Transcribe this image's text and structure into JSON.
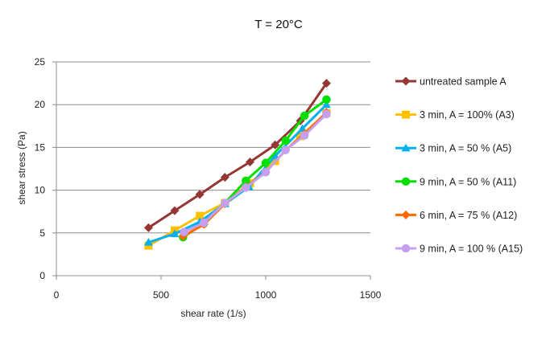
{
  "chart_data": {
    "type": "line",
    "title": "T = 20°C",
    "xlabel": "shear rate (1/s)",
    "ylabel": "shear stress (Pa)",
    "xlim": [
      0,
      1500
    ],
    "ylim": [
      0,
      25
    ],
    "xticks": [
      0,
      500,
      1000,
      1500
    ],
    "yticks": [
      0,
      5,
      10,
      15,
      20,
      25
    ],
    "grid": "horizontal",
    "legend": "right",
    "series": [
      {
        "name": "untreated sample A",
        "color": "#943634",
        "marker": "diamond",
        "points": [
          [
            440,
            5.6
          ],
          [
            565,
            7.6
          ],
          [
            685,
            9.5
          ],
          [
            805,
            11.5
          ],
          [
            925,
            13.3
          ],
          [
            1045,
            15.3
          ],
          [
            1165,
            18.1
          ],
          [
            1290,
            22.5
          ]
        ]
      },
      {
        "name": "3 min, A = 100% (A3)",
        "color": "#ffc000",
        "marker": "square",
        "points": [
          [
            440,
            3.5
          ],
          [
            565,
            5.3
          ],
          [
            685,
            7.0
          ],
          [
            805,
            8.5
          ],
          [
            925,
            10.8
          ],
          [
            1045,
            13.4
          ],
          [
            1165,
            16.3
          ],
          [
            1290,
            19.0
          ]
        ]
      },
      {
        "name": "3 min, A = 50 % (A5)",
        "color": "#00b0f0",
        "marker": "triangle",
        "points": [
          [
            440,
            3.9
          ],
          [
            565,
            4.9
          ],
          [
            685,
            6.3
          ],
          [
            805,
            8.4
          ],
          [
            920,
            10.4
          ],
          [
            1045,
            14.0
          ],
          [
            1175,
            17.2
          ],
          [
            1290,
            20.0
          ]
        ]
      },
      {
        "name": "9 min, A = 50 % (A11)",
        "color": "#00e000",
        "marker": "circle",
        "points": [
          [
            605,
            4.5
          ],
          [
            705,
            6.1
          ],
          [
            805,
            8.5
          ],
          [
            905,
            11.1
          ],
          [
            1000,
            13.2
          ],
          [
            1095,
            15.8
          ],
          [
            1185,
            18.7
          ],
          [
            1290,
            20.6
          ]
        ]
      },
      {
        "name": "6 min, A = 75  % (A12)",
        "color": "#ff6a00",
        "marker": "diamond",
        "points": [
          [
            605,
            4.6
          ],
          [
            705,
            6.0
          ],
          [
            805,
            8.4
          ],
          [
            905,
            10.4
          ],
          [
            1000,
            12.1
          ],
          [
            1095,
            14.7
          ],
          [
            1185,
            16.6
          ],
          [
            1290,
            19.1
          ]
        ]
      },
      {
        "name": "9 min, A = 100 % (A15)",
        "color": "#c6a0f0",
        "marker": "circle",
        "points": [
          [
            610,
            5.1
          ],
          [
            705,
            6.2
          ],
          [
            805,
            8.5
          ],
          [
            905,
            10.3
          ],
          [
            1000,
            12.1
          ],
          [
            1095,
            14.7
          ],
          [
            1185,
            16.4
          ],
          [
            1290,
            18.9
          ]
        ]
      }
    ]
  }
}
